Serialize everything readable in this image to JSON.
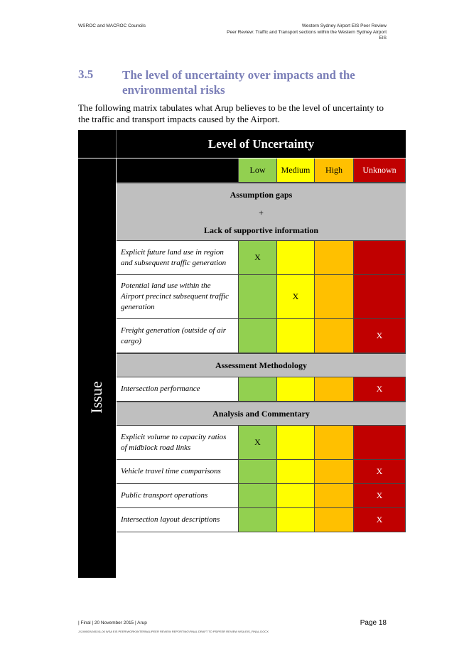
{
  "header": {
    "left": "WSROC and MACROC Councils",
    "right_line1": "Western Sydney Airport EIS Peer Review",
    "right_line2": "Peer Review: Traffic and Transport sections within the Western Sydney Airport",
    "right_line3": "EIS"
  },
  "section": {
    "number": "3.5",
    "title": "The level of uncertainty over impacts and the environmental risks",
    "intro": "The following matrix tabulates what Arup believes to be the level of uncertainty to the traffic and transport impacts caused by the Airport."
  },
  "matrix": {
    "title": "Level of Uncertainty",
    "side_label": "Issue",
    "levels": {
      "low": "Low",
      "medium": "Medium",
      "high": "High",
      "unknown": "Unknown"
    },
    "colors": {
      "low": "#92d050",
      "medium": "#ffff00",
      "high": "#ffc000",
      "unknown": "#c00000"
    },
    "group1": {
      "line1": "Assumption gaps",
      "line2": "+",
      "line3": "Lack of supportive information"
    },
    "group2": "Assessment Methodology",
    "group3": "Analysis and Commentary",
    "mark": "X",
    "rows": [
      {
        "issue": "Explicit future land use in region and subsequent traffic generation",
        "level": "Low"
      },
      {
        "issue": "Potential land use within the Airport precinct subsequent traffic generation",
        "level": "Medium"
      },
      {
        "issue": "Freight generation (outside of air cargo)",
        "level": "Unknown"
      },
      {
        "issue": "Intersection performance",
        "level": "Unknown"
      },
      {
        "issue": "Explicit volume to capacity ratios of midblock road links",
        "level": "Low"
      },
      {
        "issue": "Vehicle travel time comparisons",
        "level": "Unknown"
      },
      {
        "issue": "Public transport operations",
        "level": "Unknown"
      },
      {
        "issue": "Intersection layout descriptions",
        "level": "Unknown"
      }
    ]
  },
  "footer": {
    "left": "| Final | 20 November 2015 | Arup",
    "path": "J:\\249000\\249241-00 WSA EIS PEER\\WORK\\INTERNAL\\PEER REVIEW REPORTING\\FINAL DRAFT TO PS\\PEER REVIEW WSA EIS_FINAL.DOCX",
    "page": "Page 18"
  }
}
